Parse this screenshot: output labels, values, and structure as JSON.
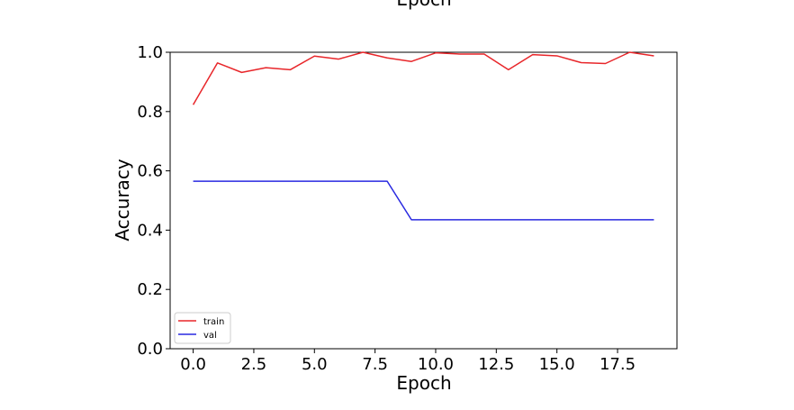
{
  "chart_data": {
    "type": "line",
    "title": "Epoch",
    "xlabel": "Epoch",
    "ylabel": "Accuracy",
    "xlim": [
      -0.95,
      19.95
    ],
    "ylim": [
      0.0,
      1.0
    ],
    "x_ticks": [
      0.0,
      2.5,
      5.0,
      7.5,
      10.0,
      12.5,
      15.0,
      17.5
    ],
    "x_tick_labels": [
      "0.0",
      "2.5",
      "5.0",
      "7.5",
      "10.0",
      "12.5",
      "15.0",
      "17.5"
    ],
    "y_ticks": [
      0.0,
      0.2,
      0.4,
      0.6,
      0.8,
      1.0
    ],
    "y_tick_labels": [
      "0.0",
      "0.2",
      "0.4",
      "0.6",
      "0.8",
      "1.0"
    ],
    "grid": false,
    "legend_position": "lower-left",
    "x": [
      0,
      1,
      2,
      3,
      4,
      5,
      6,
      7,
      8,
      9,
      10,
      11,
      12,
      13,
      14,
      15,
      16,
      17,
      18,
      19
    ],
    "series": [
      {
        "name": "train",
        "color": "#e8262a",
        "values": [
          0.823,
          0.964,
          0.932,
          0.948,
          0.941,
          0.987,
          0.977,
          1.0,
          0.981,
          0.969,
          0.998,
          0.994,
          0.994,
          0.941,
          0.992,
          0.988,
          0.965,
          0.962,
          1.0,
          0.988
        ]
      },
      {
        "name": "val",
        "color": "#2929e0",
        "values": [
          0.565,
          0.565,
          0.565,
          0.565,
          0.565,
          0.565,
          0.565,
          0.565,
          0.565,
          0.435,
          0.435,
          0.435,
          0.435,
          0.435,
          0.435,
          0.435,
          0.435,
          0.435,
          0.435,
          0.435
        ]
      }
    ]
  }
}
